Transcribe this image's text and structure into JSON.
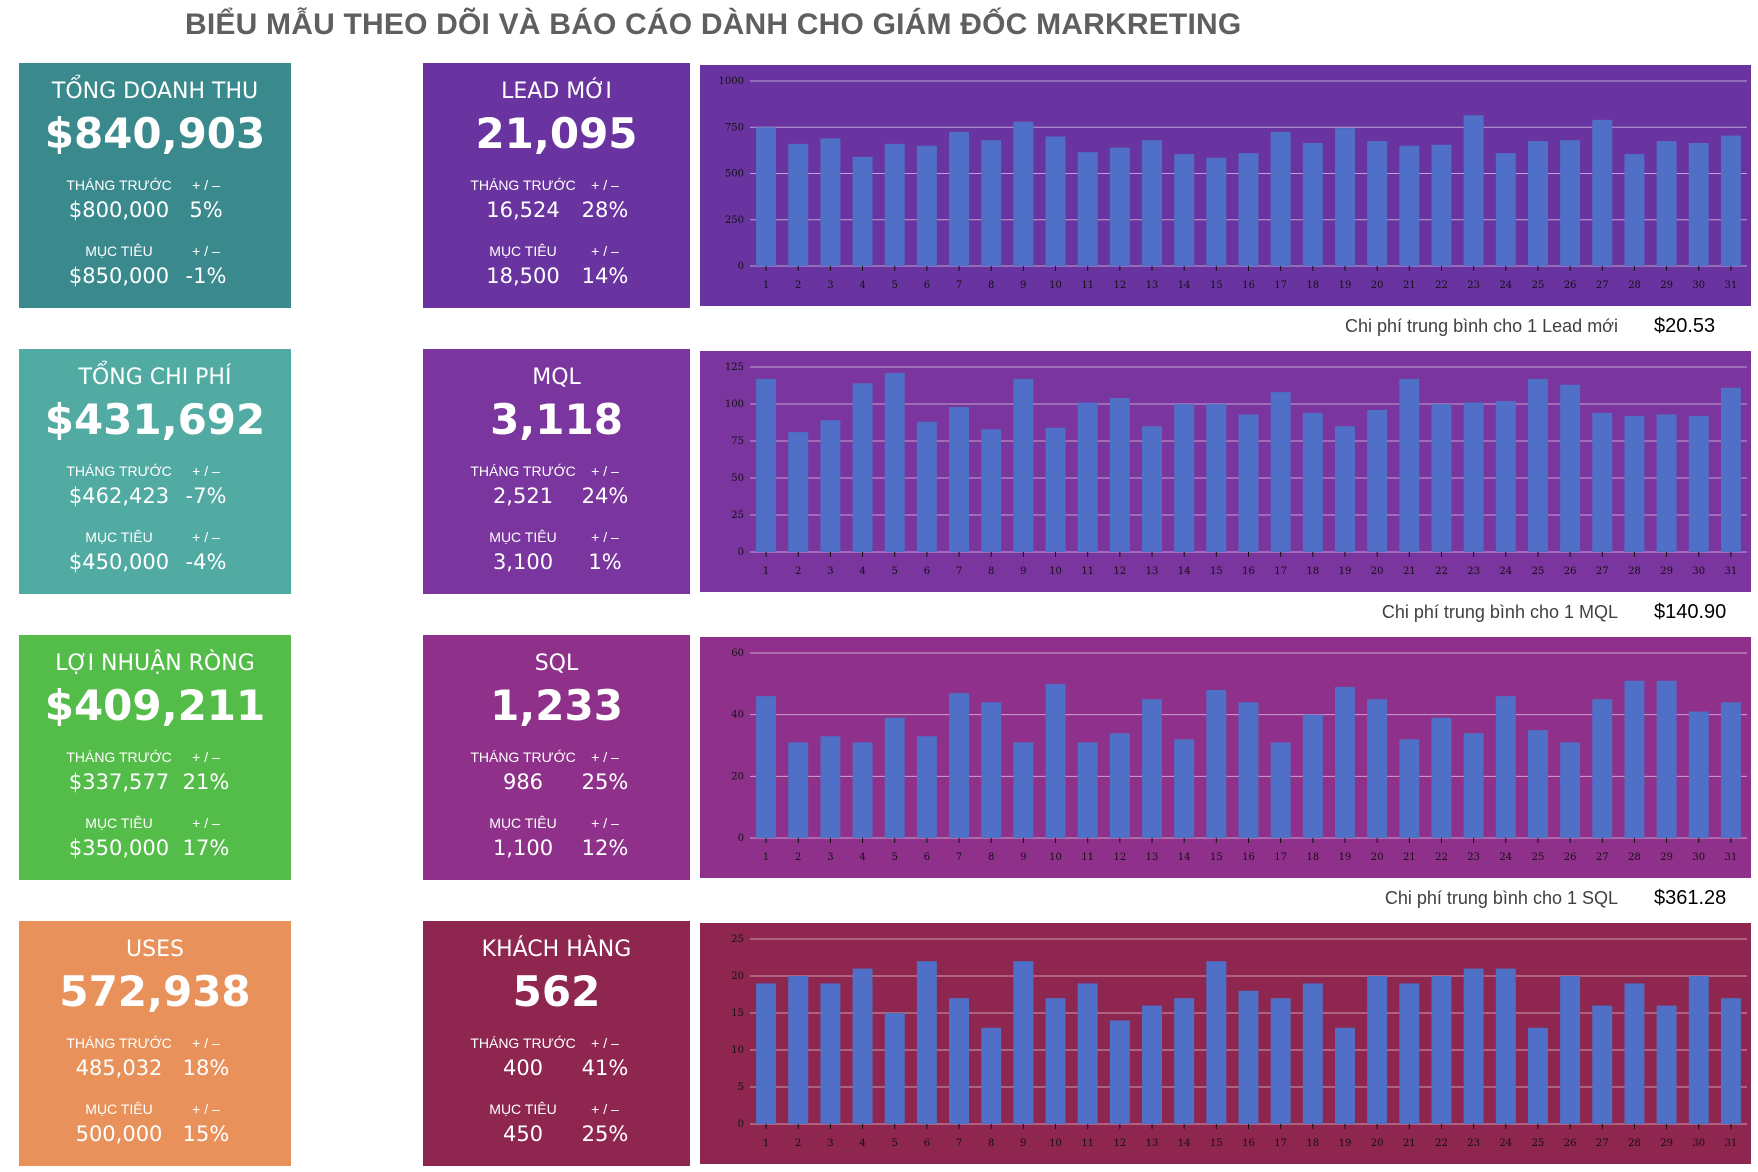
{
  "title": "BIỂU MẪU THEO DÕI VÀ BÁO CÁO DÀNH CHO GIÁM ĐỐC MARKRETING",
  "kpi_cards": [
    {
      "title": "TỔNG DOANH THU",
      "value": "$840,903",
      "prev_label": "THÁNG TRƯỚC",
      "prev_value": "$800,000",
      "prev_pm": "+ / –",
      "prev_pct": "5%",
      "target_label": "MỤC TIÊU",
      "target_value": "$850,000",
      "target_pm": "+ / –",
      "target_pct": "-1%",
      "color": "#3a8a8d"
    },
    {
      "title": "TỔNG CHI PHÍ",
      "value": "$431,692",
      "prev_label": "THÁNG TRƯỚC",
      "prev_value": "$462,423",
      "prev_pm": "+ / –",
      "prev_pct": "-7%",
      "target_label": "MỤC TIÊU",
      "target_value": "$450,000",
      "target_pm": "+ / –",
      "target_pct": "-4%",
      "color": "#52aba3"
    },
    {
      "title": "LỢI NHUẬN RÒNG",
      "value": "$409,211",
      "prev_label": "THÁNG TRƯỚC",
      "prev_value": "$337,577",
      "prev_pm": "+ / –",
      "prev_pct": "21%",
      "target_label": "MỤC TIÊU",
      "target_value": "$350,000",
      "target_pm": "+ / –",
      "target_pct": "17%",
      "color": "#54bd4a"
    },
    {
      "title": "USES",
      "value": "572,938",
      "prev_label": "THÁNG TRƯỚC",
      "prev_value": "485,032",
      "prev_pm": "+ / –",
      "prev_pct": "18%",
      "target_label": "MỤC TIÊU",
      "target_value": "500,000",
      "target_pm": "+ / –",
      "target_pct": "15%",
      "color": "#e8915a"
    }
  ],
  "funnel_cards": [
    {
      "title": "LEAD MỚI",
      "value": "21,095",
      "prev_label": "THÁNG TRƯỚC",
      "prev_value": "16,524",
      "prev_pm": "+ / –",
      "prev_pct": "28%",
      "target_label": "MỤC TIÊU",
      "target_value": "18,500",
      "target_pm": "+ / –",
      "target_pct": "14%",
      "color": "#6a34a0"
    },
    {
      "title": "MQL",
      "value": "3,118",
      "prev_label": "THÁNG TRƯỚC",
      "prev_value": "2,521",
      "prev_pm": "+ / –",
      "prev_pct": "24%",
      "target_label": "MỤC TIÊU",
      "target_value": "3,100",
      "target_pm": "+ / –",
      "target_pct": "1%",
      "color": "#7a359e"
    },
    {
      "title": "SQL",
      "value": "1,233",
      "prev_label": "THÁNG TRƯỚC",
      "prev_value": "986",
      "prev_pm": "+ / –",
      "prev_pct": "25%",
      "target_label": "MỤC TIÊU",
      "target_value": "1,100",
      "target_pm": "+ / –",
      "target_pct": "12%",
      "color": "#8f318a"
    },
    {
      "title": "KHÁCH HÀNG",
      "value": "562",
      "prev_label": "THÁNG TRƯỚC",
      "prev_value": "400",
      "prev_pm": "+ / –",
      "prev_pct": "41%",
      "target_label": "MỤC TIÊU",
      "target_value": "450",
      "target_pm": "+ / –",
      "target_pct": "25%",
      "color": "#8e2650"
    }
  ],
  "avg_costs": [
    {
      "label": "Chi phí trung bình cho 1 Lead mới",
      "value": "$20.53"
    },
    {
      "label": "Chi phí trung bình cho 1 MQL",
      "value": "$140.90"
    },
    {
      "label": "Chi phí trung bình cho 1 SQL",
      "value": "$361.28"
    }
  ],
  "chart_data": [
    {
      "type": "bar",
      "title": "",
      "xlabel": "",
      "ylabel": "",
      "grid": true,
      "bg": "#6a34a0",
      "bar_color": "#4f70c6",
      "ylim": [
        0,
        1000
      ],
      "yticks": [
        0,
        250,
        500,
        750,
        1000
      ],
      "categories": [
        "1",
        "2",
        "3",
        "4",
        "5",
        "6",
        "7",
        "8",
        "9",
        "10",
        "11",
        "12",
        "13",
        "14",
        "15",
        "16",
        "17",
        "18",
        "19",
        "20",
        "21",
        "22",
        "23",
        "24",
        "25",
        "26",
        "27",
        "28",
        "29",
        "30",
        "31"
      ],
      "values": [
        750,
        660,
        690,
        590,
        660,
        650,
        725,
        680,
        780,
        700,
        615,
        640,
        680,
        605,
        585,
        610,
        725,
        665,
        745,
        675,
        650,
        655,
        815,
        610,
        675,
        680,
        790,
        605,
        675,
        665,
        705
      ]
    },
    {
      "type": "bar",
      "title": "",
      "xlabel": "",
      "ylabel": "",
      "grid": true,
      "bg": "#7a359e",
      "bar_color": "#4f70c6",
      "ylim": [
        0,
        125
      ],
      "yticks": [
        0,
        25,
        50,
        75,
        100,
        125
      ],
      "categories": [
        "1",
        "2",
        "3",
        "4",
        "5",
        "6",
        "7",
        "8",
        "9",
        "10",
        "11",
        "12",
        "13",
        "14",
        "15",
        "16",
        "17",
        "18",
        "19",
        "20",
        "21",
        "22",
        "23",
        "24",
        "25",
        "26",
        "27",
        "28",
        "29",
        "30",
        "31"
      ],
      "values": [
        117,
        81,
        89,
        114,
        121,
        88,
        98,
        83,
        117,
        84,
        101,
        104,
        85,
        100,
        100,
        93,
        108,
        94,
        85,
        96,
        117,
        100,
        101,
        102,
        117,
        113,
        94,
        92,
        93,
        92,
        111
      ]
    },
    {
      "type": "bar",
      "title": "",
      "xlabel": "",
      "ylabel": "",
      "grid": true,
      "bg": "#8f318a",
      "bar_color": "#4f70c6",
      "ylim": [
        0,
        60
      ],
      "yticks": [
        0,
        20,
        40,
        60
      ],
      "categories": [
        "1",
        "2",
        "3",
        "4",
        "5",
        "6",
        "7",
        "8",
        "9",
        "10",
        "11",
        "12",
        "13",
        "14",
        "15",
        "16",
        "17",
        "18",
        "19",
        "20",
        "21",
        "22",
        "23",
        "24",
        "25",
        "26",
        "27",
        "28",
        "29",
        "30",
        "31"
      ],
      "values": [
        46,
        31,
        33,
        31,
        39,
        33,
        47,
        44,
        31,
        50,
        31,
        34,
        45,
        32,
        48,
        44,
        31,
        40,
        49,
        45,
        32,
        39,
        34,
        46,
        35,
        31,
        45,
        51,
        51,
        41,
        44
      ]
    },
    {
      "type": "bar",
      "title": "",
      "xlabel": "",
      "ylabel": "",
      "grid": true,
      "bg": "#8e2650",
      "bar_color": "#4f70c6",
      "ylim": [
        0,
        25
      ],
      "yticks": [
        0,
        5,
        10,
        15,
        20,
        25
      ],
      "categories": [
        "1",
        "2",
        "3",
        "4",
        "5",
        "6",
        "7",
        "8",
        "9",
        "10",
        "11",
        "12",
        "13",
        "14",
        "15",
        "16",
        "17",
        "18",
        "19",
        "20",
        "21",
        "22",
        "23",
        "24",
        "25",
        "26",
        "27",
        "28",
        "29",
        "30",
        "31"
      ],
      "values": [
        19,
        20,
        19,
        21,
        15,
        22,
        17,
        13,
        22,
        17,
        19,
        14,
        16,
        17,
        22,
        18,
        17,
        19,
        13,
        20,
        19,
        20,
        21,
        21,
        13,
        20,
        16,
        19,
        16,
        20,
        17
      ]
    }
  ]
}
